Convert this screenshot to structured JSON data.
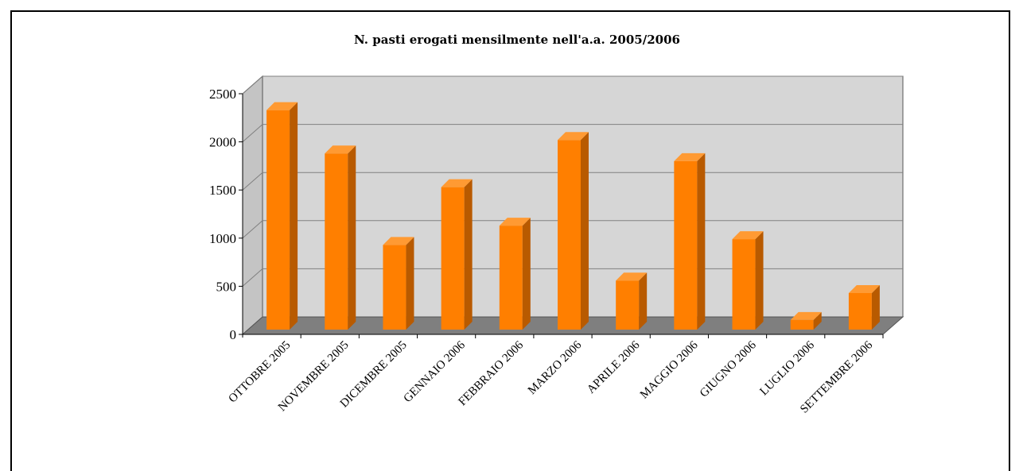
{
  "chart_data": {
    "type": "bar",
    "title": "N. pasti erogati mensilmente nell'a.a. 2005/2006",
    "xlabel": "",
    "ylabel": "",
    "ylim": [
      0,
      2500
    ],
    "yticks": [
      "0",
      "500",
      "1000",
      "1500",
      "2000",
      "2500"
    ],
    "categories": [
      "OTTOBRE 2005",
      "NOVEMBRE 2005",
      "DICEMBRE 2005",
      "GENNAIO 2006",
      "FEBBRAIO 2006",
      "MARZO 2006",
      "APRILE 2006",
      "MAGGIO 2006",
      "GIUGNO 2006",
      "LUGLIO 2006",
      "SETTEMBRE 2006"
    ],
    "values": [
      2280,
      1830,
      880,
      1480,
      1080,
      1970,
      510,
      1750,
      940,
      100,
      380
    ],
    "grid": true,
    "style": "3d",
    "colors": {
      "bar_front": "#ff7f00",
      "bar_top": "#ff9a33",
      "bar_side": "#b85a00",
      "back_wall": "#d6d6d6",
      "floor": "#7f7f7f",
      "grid": "#808080"
    }
  }
}
